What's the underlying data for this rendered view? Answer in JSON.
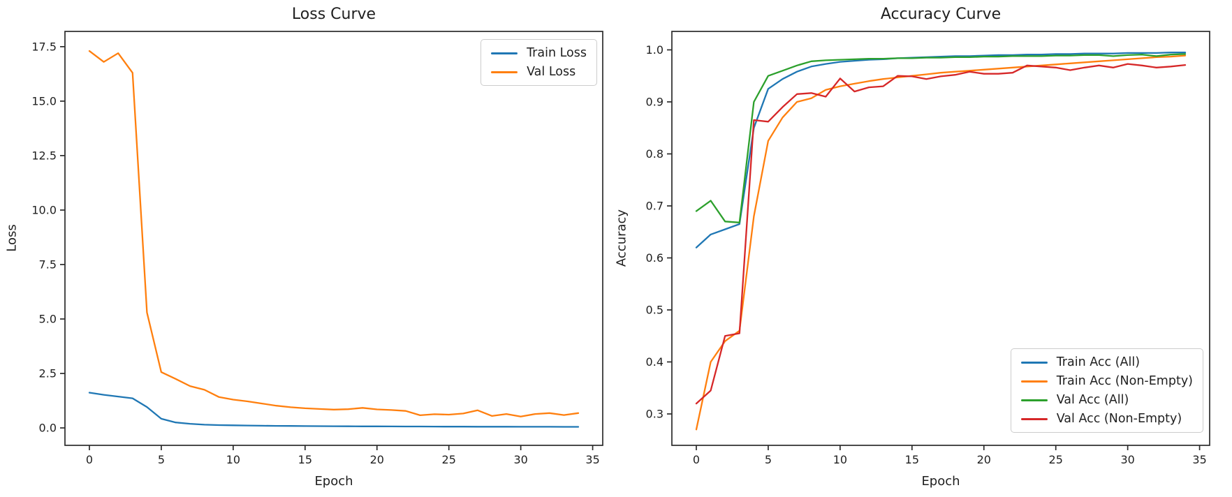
{
  "figure": {
    "background": "#ffffff",
    "spine_color": "#2a2a2a",
    "text_color": "#1f1f1f"
  },
  "chart_data": [
    {
      "type": "line",
      "title": "Loss Curve",
      "xlabel": "Epoch",
      "ylabel": "Loss",
      "xlim": [
        -1.7,
        35.7
      ],
      "ylim": [
        -0.8,
        18.2
      ],
      "grid": false,
      "x_tick_values": [
        0,
        5,
        10,
        15,
        20,
        25,
        30,
        35
      ],
      "x_tick_labels": [
        "0",
        "5",
        "10",
        "15",
        "20",
        "25",
        "30",
        "35"
      ],
      "y_tick_values": [
        0.0,
        2.5,
        5.0,
        7.5,
        10.0,
        12.5,
        15.0,
        17.5
      ],
      "y_tick_labels": [
        "0.0",
        "2.5",
        "5.0",
        "7.5",
        "10.0",
        "12.5",
        "15.0",
        "17.5"
      ],
      "legend_position": "upper-right",
      "epochs": [
        0,
        1,
        2,
        3,
        4,
        5,
        6,
        7,
        8,
        9,
        10,
        11,
        12,
        13,
        14,
        15,
        16,
        17,
        18,
        19,
        20,
        21,
        22,
        23,
        24,
        25,
        26,
        27,
        28,
        29,
        30,
        31,
        32,
        33,
        34
      ],
      "series": [
        {
          "name": "Train Loss",
          "color": "#1f77b4",
          "values": [
            1.62,
            1.52,
            1.44,
            1.36,
            0.96,
            0.42,
            0.25,
            0.19,
            0.15,
            0.13,
            0.12,
            0.11,
            0.1,
            0.095,
            0.09,
            0.085,
            0.082,
            0.079,
            0.076,
            0.073,
            0.07,
            0.068,
            0.066,
            0.064,
            0.062,
            0.06,
            0.058,
            0.057,
            0.056,
            0.055,
            0.053,
            0.052,
            0.051,
            0.05,
            0.05
          ]
        },
        {
          "name": "Val Loss",
          "color": "#ff7f0e",
          "values": [
            17.3,
            16.8,
            17.2,
            16.3,
            5.3,
            2.56,
            2.25,
            1.92,
            1.75,
            1.42,
            1.3,
            1.22,
            1.12,
            1.02,
            0.95,
            0.9,
            0.87,
            0.84,
            0.86,
            0.92,
            0.85,
            0.82,
            0.78,
            0.58,
            0.63,
            0.61,
            0.66,
            0.81,
            0.55,
            0.64,
            0.52,
            0.64,
            0.68,
            0.59,
            0.68
          ]
        }
      ]
    },
    {
      "type": "line",
      "title": "Accuracy Curve",
      "xlabel": "Epoch",
      "ylabel": "Accuracy",
      "xlim": [
        -1.7,
        35.7
      ],
      "ylim": [
        0.2396,
        1.0355
      ],
      "grid": false,
      "x_tick_values": [
        0,
        5,
        10,
        15,
        20,
        25,
        30,
        35
      ],
      "x_tick_labels": [
        "0",
        "5",
        "10",
        "15",
        "20",
        "25",
        "30",
        "35"
      ],
      "y_tick_values": [
        0.3,
        0.4,
        0.5,
        0.6,
        0.7,
        0.8,
        0.9,
        1.0
      ],
      "y_tick_labels": [
        "0.3",
        "0.4",
        "0.5",
        "0.6",
        "0.7",
        "0.8",
        "0.9",
        "1.0"
      ],
      "legend_position": "lower-right",
      "epochs": [
        0,
        1,
        2,
        3,
        4,
        5,
        6,
        7,
        8,
        9,
        10,
        11,
        12,
        13,
        14,
        15,
        16,
        17,
        18,
        19,
        20,
        21,
        22,
        23,
        24,
        25,
        26,
        27,
        28,
        29,
        30,
        31,
        32,
        33,
        34
      ],
      "series": [
        {
          "name": "Train Acc (All)",
          "color": "#1f77b4",
          "values": [
            0.62,
            0.645,
            0.655,
            0.665,
            0.85,
            0.925,
            0.944,
            0.958,
            0.968,
            0.973,
            0.977,
            0.979,
            0.981,
            0.982,
            0.984,
            0.985,
            0.986,
            0.987,
            0.988,
            0.988,
            0.989,
            0.99,
            0.99,
            0.991,
            0.991,
            0.992,
            0.992,
            0.993,
            0.993,
            0.993,
            0.994,
            0.994,
            0.994,
            0.995,
            0.995
          ]
        },
        {
          "name": "Train Acc (Non-Empty)",
          "color": "#ff7f0e",
          "values": [
            0.27,
            0.4,
            0.44,
            0.46,
            0.68,
            0.825,
            0.87,
            0.9,
            0.907,
            0.923,
            0.93,
            0.935,
            0.94,
            0.944,
            0.947,
            0.95,
            0.953,
            0.956,
            0.958,
            0.96,
            0.962,
            0.964,
            0.966,
            0.968,
            0.97,
            0.972,
            0.974,
            0.976,
            0.978,
            0.98,
            0.982,
            0.984,
            0.986,
            0.987,
            0.989
          ]
        },
        {
          "name": "Val Acc (All)",
          "color": "#2ca02c",
          "values": [
            0.69,
            0.71,
            0.67,
            0.668,
            0.9,
            0.95,
            0.96,
            0.97,
            0.978,
            0.98,
            0.981,
            0.982,
            0.983,
            0.983,
            0.984,
            0.984,
            0.985,
            0.985,
            0.986,
            0.986,
            0.987,
            0.987,
            0.988,
            0.988,
            0.988,
            0.989,
            0.989,
            0.99,
            0.99,
            0.988,
            0.99,
            0.991,
            0.988,
            0.991,
            0.992
          ]
        },
        {
          "name": "Val Acc (Non-Empty)",
          "color": "#d62728",
          "values": [
            0.32,
            0.345,
            0.45,
            0.455,
            0.865,
            0.862,
            0.89,
            0.915,
            0.917,
            0.91,
            0.945,
            0.92,
            0.928,
            0.93,
            0.95,
            0.949,
            0.944,
            0.949,
            0.952,
            0.958,
            0.954,
            0.954,
            0.956,
            0.97,
            0.968,
            0.966,
            0.961,
            0.966,
            0.97,
            0.966,
            0.973,
            0.97,
            0.966,
            0.968,
            0.971
          ]
        }
      ]
    }
  ]
}
